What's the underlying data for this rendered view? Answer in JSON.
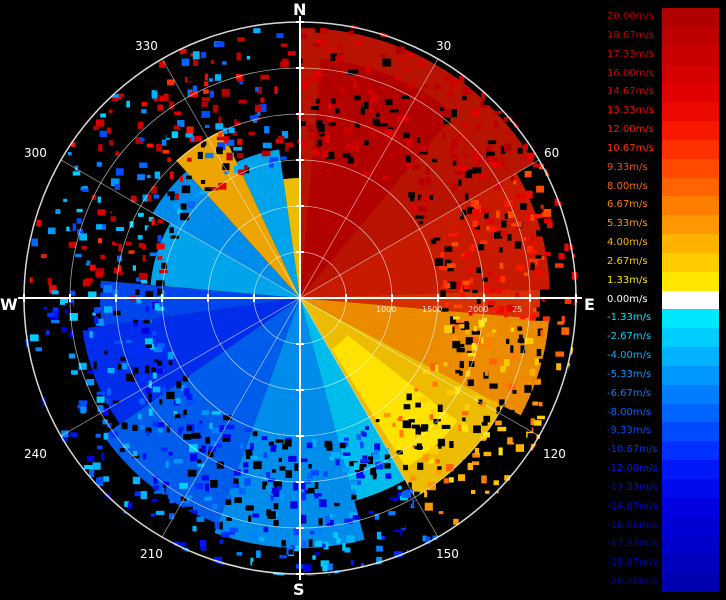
{
  "compass": {
    "north": "N",
    "south": "S",
    "west": "W",
    "east": "E"
  },
  "bearings": [
    {
      "angle": 30,
      "label": "30"
    },
    {
      "angle": 60,
      "label": "60"
    },
    {
      "angle": 120,
      "label": "120"
    },
    {
      "angle": 150,
      "label": "150"
    },
    {
      "angle": 210,
      "label": "210"
    },
    {
      "angle": 240,
      "label": "240"
    },
    {
      "angle": 300,
      "label": "300"
    },
    {
      "angle": 330,
      "label": "330"
    }
  ],
  "range_ticks": [
    "1000",
    "1500",
    "2000",
    "25"
  ],
  "colorbar": [
    {
      "label": "20.00m/s",
      "color": "#b00000"
    },
    {
      "label": "18.67m/s",
      "color": "#bc0000"
    },
    {
      "label": "17.33m/s",
      "color": "#c80000"
    },
    {
      "label": "16.00m/s",
      "color": "#d40000"
    },
    {
      "label": "14.67m/s",
      "color": "#e00000"
    },
    {
      "label": "13.33m/s",
      "color": "#ec0a00"
    },
    {
      "label": "12.00m/s",
      "color": "#f81800"
    },
    {
      "label": "10.67m/s",
      "color": "#ff3000"
    },
    {
      "label": "9.33m/s",
      "color": "#ff4a00"
    },
    {
      "label": "8.00m/s",
      "color": "#ff6400"
    },
    {
      "label": "6.67m/s",
      "color": "#ff7e00"
    },
    {
      "label": "5.33m/s",
      "color": "#ff9800"
    },
    {
      "label": "4.00m/s",
      "color": "#ffb200"
    },
    {
      "label": "2.67m/s",
      "color": "#ffcc00"
    },
    {
      "label": "1.33m/s",
      "color": "#ffe600"
    },
    {
      "label": "0.00m/s",
      "color": "#ffffff"
    },
    {
      "label": "-1.33m/s",
      "color": "#00e6ff"
    },
    {
      "label": "-2.67m/s",
      "color": "#00ccff"
    },
    {
      "label": "-4.00m/s",
      "color": "#00b2ff"
    },
    {
      "label": "-5.33m/s",
      "color": "#0098ff"
    },
    {
      "label": "-6.67m/s",
      "color": "#007eff"
    },
    {
      "label": "-8.00m/s",
      "color": "#0064ff"
    },
    {
      "label": "-9.33m/s",
      "color": "#004aff"
    },
    {
      "label": "-10.67m/s",
      "color": "#0030ff"
    },
    {
      "label": "-12.00m/s",
      "color": "#0018f8"
    },
    {
      "label": "-13.33m/s",
      "color": "#000aec"
    },
    {
      "label": "-14.67m/s",
      "color": "#0000e0"
    },
    {
      "label": "-16.00m/s",
      "color": "#0000d4"
    },
    {
      "label": "-17.33m/s",
      "color": "#0000c8"
    },
    {
      "label": "-18.67m/s",
      "color": "#0000bc"
    },
    {
      "label": "-20.00m/s",
      "color": "#0000b0"
    }
  ]
}
